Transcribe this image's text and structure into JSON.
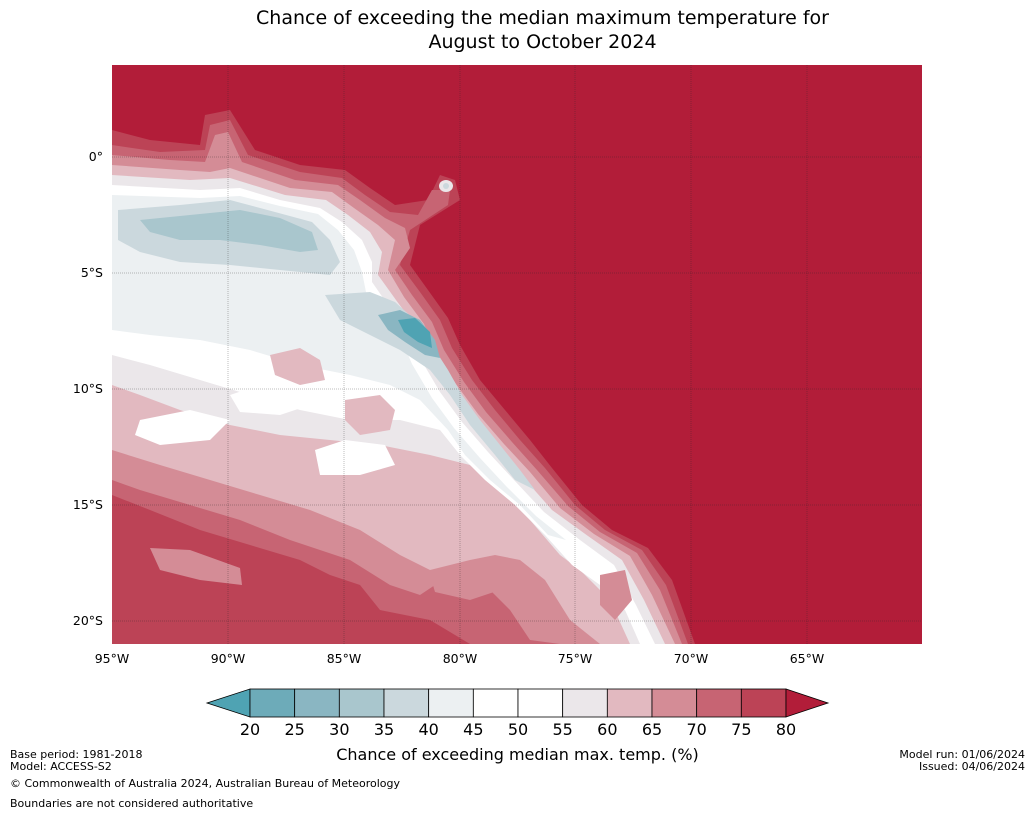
{
  "title": {
    "line1": "Chance of exceeding the median maximum temperature for",
    "line2": "August to October 2024"
  },
  "map": {
    "background_color": "#b21d39",
    "lat_labels": [
      "0°",
      "5°S",
      "10°S",
      "15°S",
      "20°S"
    ],
    "lon_labels": [
      "95°W",
      "90°W",
      "85°W",
      "80°W",
      "75°W",
      "70°W",
      "65°W"
    ]
  },
  "colorbar": {
    "ticks": [
      "20",
      "25",
      "30",
      "35",
      "40",
      "45",
      "50",
      "55",
      "60",
      "65",
      "70",
      "75",
      "80"
    ],
    "colors": [
      "#4fa3b3",
      "#6dabb9",
      "#8ab6c2",
      "#a9c6cd",
      "#cbd8dd",
      "#ecf0f2",
      "#ffffff",
      "#ffffff",
      "#ebe7ea",
      "#e2b9c0",
      "#d48c96",
      "#c76473",
      "#bc4356",
      "#b21d39"
    ],
    "label": "Chance of exceeding median max. temp. (%)"
  },
  "footer": {
    "base_period": "Base period: 1981-2018",
    "model": "Model: ACCESS-S2",
    "copyright": "© Commonwealth of Australia 2024, Australian Bureau of Meteorology",
    "boundaries": "Boundaries are not considered authoritative",
    "model_run": "Model run: 01/06/2024",
    "issued": "Issued: 04/06/2024"
  }
}
